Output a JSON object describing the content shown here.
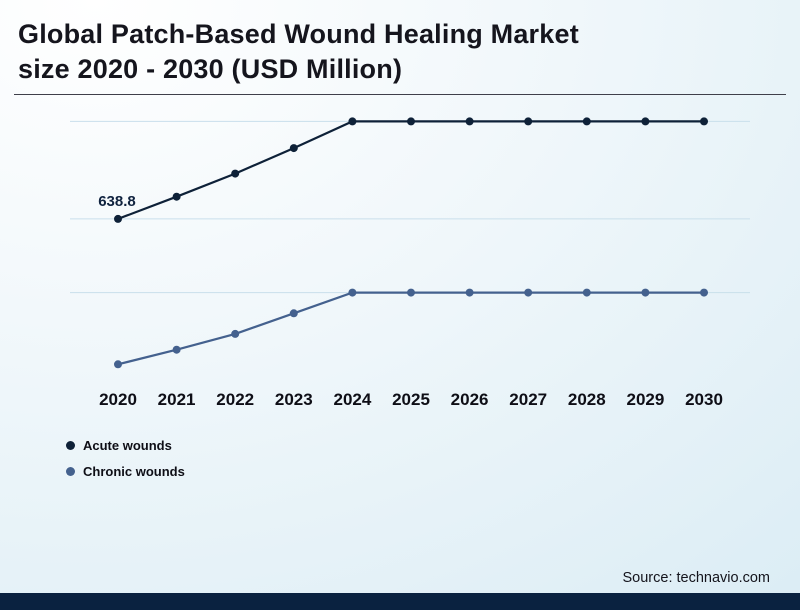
{
  "header": {
    "title": "Global Patch-Based Wound Healing Market\nsize 2020 - 2030 (USD Million)"
  },
  "chart_data": {
    "type": "line",
    "title": "Global Patch-Based Wound Healing Market size 2020 - 2030 (USD Million)",
    "unit": "USD Million",
    "categories": [
      "2020",
      "2021",
      "2022",
      "2023",
      "2024",
      "2025",
      "2026",
      "2027",
      "2028",
      "2029",
      "2030"
    ],
    "series": [
      {
        "name": "Acute wounds",
        "color": "#0e2138",
        "values": [
          638.8,
          730,
          825,
          930,
          1040,
          1040,
          1040,
          1040,
          1040,
          1040,
          1040
        ]
      },
      {
        "name": "Chronic wounds",
        "color": "#44618e",
        "values": [
          40,
          100,
          165,
          250,
          335,
          335,
          335,
          335,
          335,
          335,
          335
        ]
      }
    ],
    "data_labels": [
      {
        "series": "Acute wounds",
        "category": "2020",
        "label": "638.8"
      }
    ],
    "ylim": [
      0,
      1050
    ],
    "xlabel": "",
    "ylabel": "",
    "grid": "faint-horizontal",
    "gridlines": [
      1040,
      638.8,
      335
    ],
    "legend_position": "bottom-left"
  },
  "footer": {
    "source": "Source: technavio.com"
  },
  "theme": {
    "footer_bar": "#0a2240",
    "title_color": "#15151d",
    "background_tint": "#dcedf5"
  }
}
